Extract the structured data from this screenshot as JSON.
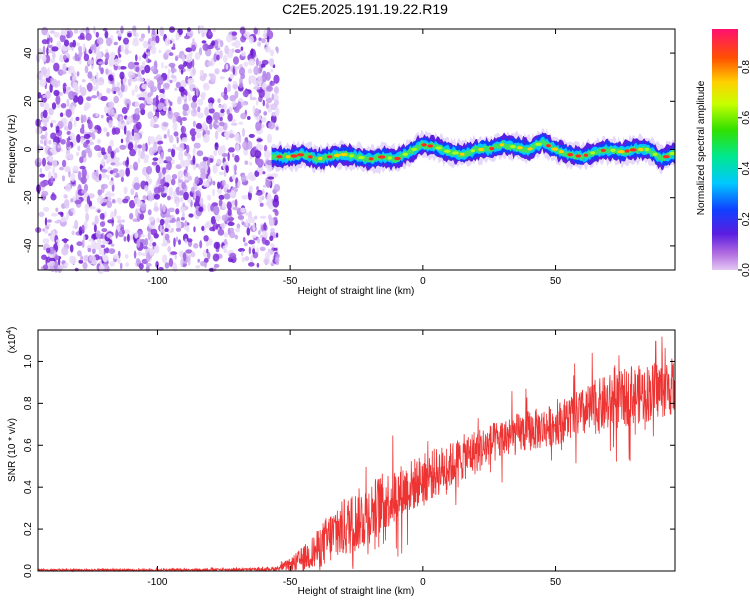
{
  "figure": {
    "title": "C2E5.2025.191.19.22.R19"
  },
  "chart_data": [
    {
      "type": "heatmap",
      "title": "C2E5.2025.191.19.22.R19",
      "xlabel": "Height of straight line (km)",
      "ylabel": "Frequency (Hz)",
      "xlim": [
        -145,
        95
      ],
      "ylim": [
        -50,
        50
      ],
      "x_ticks": [
        -100,
        -50,
        0,
        50
      ],
      "y_ticks": [
        -40,
        -20,
        0,
        20,
        40
      ],
      "x_tick_labels": [
        "-100",
        "-50",
        "0",
        "50"
      ],
      "y_tick_labels": [
        "-40",
        "-20",
        "0",
        "20",
        "40"
      ],
      "noise_region_x": [
        -145,
        -57
      ],
      "signal_track": {
        "x": [
          -57,
          -50,
          -45,
          -40,
          -35,
          -30,
          -25,
          -20,
          -15,
          -10,
          -5,
          0,
          5,
          10,
          15,
          20,
          25,
          30,
          35,
          40,
          45,
          50,
          55,
          60,
          65,
          70,
          75,
          80,
          85,
          90,
          95
        ],
        "freq": [
          -3,
          -3,
          -2,
          -4,
          -3,
          -2,
          -3,
          -4,
          -3,
          -4,
          -1,
          2,
          1,
          -1,
          -2,
          0,
          0,
          2,
          1,
          0,
          3,
          0,
          -2,
          -3,
          -1,
          0,
          -1,
          0,
          0,
          -4,
          -1
        ]
      },
      "colorbar": {
        "label": "Normalized spectral amplitude",
        "range": [
          0,
          0.95
        ],
        "ticks": [
          0.0,
          0.2,
          0.4,
          0.6,
          0.8
        ],
        "tick_labels": [
          "0.0",
          "0.2",
          "0.4",
          "0.6",
          "0.8"
        ]
      },
      "grid": false
    },
    {
      "type": "line",
      "xlabel": "Height of straight line (km)",
      "ylabel": "SNR (10 * v/v)",
      "y_scale_note": "(x10",
      "y_scale_exponent": "4",
      "xlim": [
        -145,
        95
      ],
      "ylim": [
        0,
        1.15
      ],
      "x_ticks": [
        -100,
        -50,
        0,
        50
      ],
      "y_ticks": [
        0.0,
        0.2,
        0.4,
        0.6,
        0.8,
        1.0
      ],
      "x_tick_labels": [
        "-100",
        "-50",
        "0",
        "50"
      ],
      "y_tick_labels": [
        "0.0",
        "0.2",
        "0.4",
        "0.6",
        "0.8",
        "1.0"
      ],
      "color": "#ee3333",
      "envelope": {
        "x": [
          -145,
          -100,
          -60,
          -55,
          -50,
          -45,
          -40,
          -35,
          -30,
          -25,
          -20,
          -15,
          -10,
          -5,
          0,
          5,
          10,
          15,
          20,
          25,
          30,
          35,
          40,
          45,
          50,
          55,
          60,
          65,
          70,
          75,
          80,
          85,
          90,
          95
        ],
        "mean": [
          0.005,
          0.005,
          0.008,
          0.012,
          0.03,
          0.06,
          0.1,
          0.16,
          0.2,
          0.24,
          0.28,
          0.33,
          0.36,
          0.4,
          0.44,
          0.47,
          0.5,
          0.54,
          0.57,
          0.6,
          0.63,
          0.65,
          0.67,
          0.68,
          0.7,
          0.73,
          0.75,
          0.78,
          0.8,
          0.82,
          0.84,
          0.85,
          0.87,
          0.88
        ],
        "spread": [
          0.005,
          0.005,
          0.006,
          0.01,
          0.03,
          0.06,
          0.09,
          0.13,
          0.14,
          0.15,
          0.15,
          0.14,
          0.14,
          0.13,
          0.12,
          0.12,
          0.11,
          0.11,
          0.11,
          0.1,
          0.1,
          0.1,
          0.1,
          0.1,
          0.1,
          0.11,
          0.12,
          0.13,
          0.14,
          0.14,
          0.14,
          0.14,
          0.14,
          0.14
        ]
      }
    }
  ]
}
